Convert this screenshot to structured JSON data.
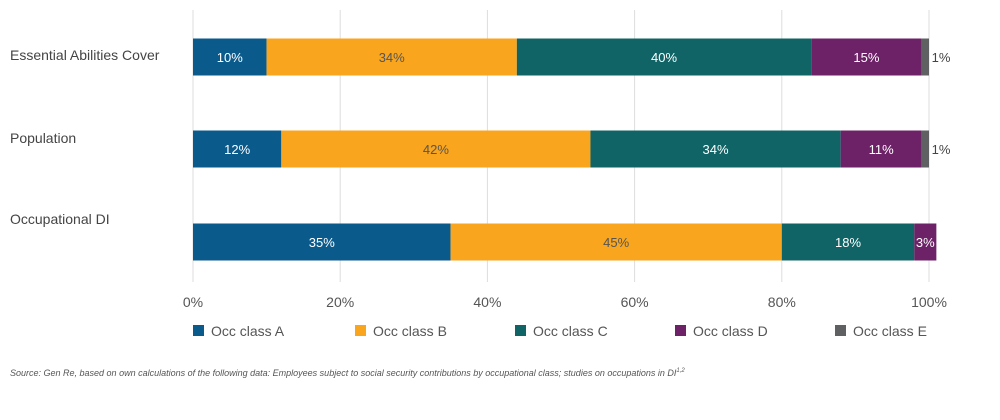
{
  "chart_data": {
    "type": "bar",
    "orientation": "horizontal",
    "stacked": true,
    "categories": [
      "Essential Abilities Cover",
      "Population",
      "Occupational DI"
    ],
    "series": [
      {
        "name": "Occ class A",
        "values": [
          10,
          12,
          35
        ],
        "labels": [
          "10%",
          "12%",
          "35%"
        ],
        "color": "#0b5a8c"
      },
      {
        "name": "Occ class B",
        "values": [
          34,
          42,
          45
        ],
        "labels": [
          "34%",
          "42%",
          "45%"
        ],
        "color": "#f9a51d"
      },
      {
        "name": "Occ class C",
        "values": [
          40,
          34,
          18
        ],
        "labels": [
          "40%",
          "34%",
          "18%"
        ],
        "color": "#116466"
      },
      {
        "name": "Occ class D",
        "values": [
          15,
          11,
          3
        ],
        "labels": [
          "15%",
          "11%",
          "3%"
        ],
        "color": "#6d2167"
      },
      {
        "name": "Occ class E",
        "values": [
          1,
          1,
          0
        ],
        "labels": [
          "1%",
          "1%",
          ""
        ],
        "color": "#5f6062"
      }
    ],
    "xlim": [
      0,
      100
    ],
    "x_ticks": [
      "0%",
      "20%",
      "40%",
      "60%",
      "80%",
      "100%"
    ],
    "x_tick_values": [
      0,
      20,
      40,
      60,
      80,
      100
    ],
    "grid": true,
    "legend_position": "bottom",
    "source": "Source: Gen Re, based on own calculations of the following data: Employees subject to social security contributions by occupational class; studies on occupations in DI",
    "source_superscript": "1,2"
  }
}
